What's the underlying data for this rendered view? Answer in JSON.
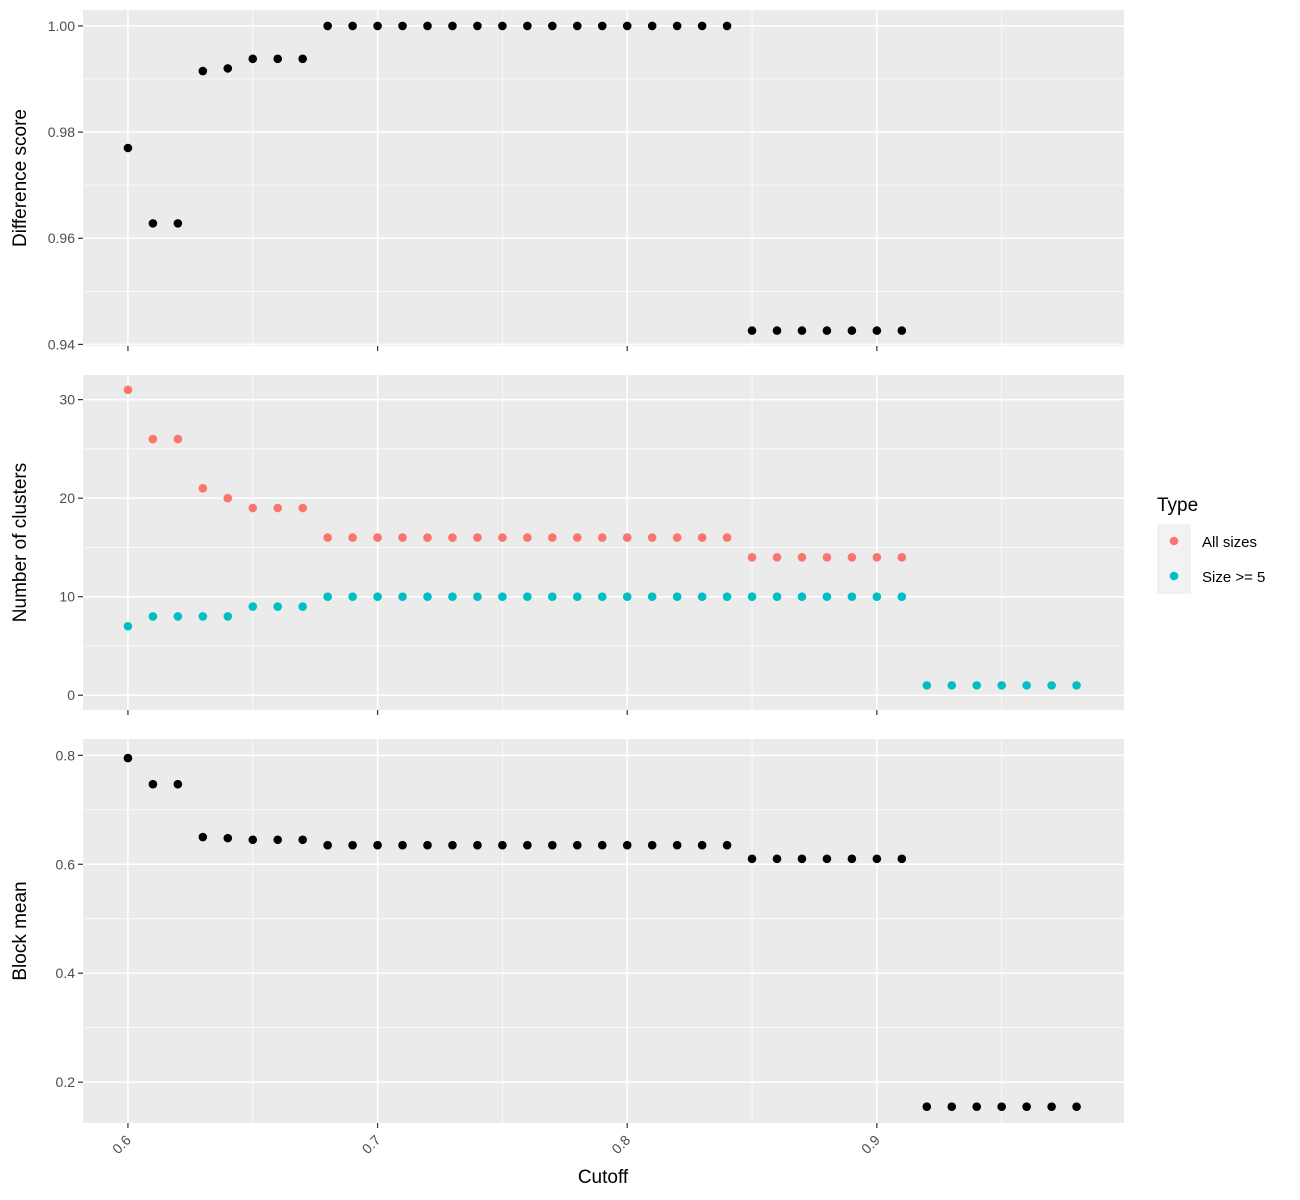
{
  "chart_data": {
    "type": "scatter",
    "layout": "three vertically stacked panels sharing the x axis",
    "xlabel": "Cutoff",
    "xlim": [
      0.582,
      0.999
    ],
    "x_ticks": [
      0.6,
      0.7,
      0.8,
      0.9
    ],
    "x_tick_labels": [
      "0.6",
      "0.7",
      "0.8",
      "0.9"
    ],
    "grid": true,
    "legend": {
      "title": "Type",
      "placement": "right",
      "entries": [
        {
          "label": "All sizes",
          "color": "#F8766D"
        },
        {
          "label": "Size >= 5",
          "color": "#00BFC4"
        }
      ]
    },
    "panels": [
      {
        "ylabel": "Difference score",
        "ylim": [
          0.9397,
          1.003
        ],
        "y_ticks": [
          0.94,
          0.96,
          0.98,
          1.0
        ],
        "y_tick_labels": [
          "0.94",
          "0.96",
          "0.98",
          "1.00"
        ],
        "series": [
          {
            "color": "#000000",
            "x": [
              0.6,
              0.61,
              0.62,
              0.63,
              0.64,
              0.65,
              0.66,
              0.67,
              0.68,
              0.69,
              0.7,
              0.71,
              0.72,
              0.73,
              0.74,
              0.75,
              0.76,
              0.77,
              0.78,
              0.79,
              0.8,
              0.81,
              0.82,
              0.83,
              0.84,
              0.85,
              0.86,
              0.87,
              0.88,
              0.89,
              0.9,
              0.91
            ],
            "y": [
              0.977,
              0.9628,
              0.9628,
              0.9915,
              0.992,
              0.9938,
              0.9938,
              0.9938,
              1.0,
              1.0,
              1.0,
              1.0,
              1.0,
              1.0,
              1.0,
              1.0,
              1.0,
              1.0,
              1.0,
              1.0,
              1.0,
              1.0,
              1.0,
              1.0,
              1.0,
              0.9426,
              0.9426,
              0.9426,
              0.9426,
              0.9426,
              0.9426,
              0.9426
            ]
          }
        ]
      },
      {
        "ylabel": "Number of clusters",
        "ylim": [
          -1.5,
          32.5
        ],
        "y_ticks": [
          0,
          10,
          20,
          30
        ],
        "y_tick_labels": [
          "0",
          "10",
          "20",
          "30"
        ],
        "series": [
          {
            "name": "All sizes",
            "color": "#F8766D",
            "x": [
              0.6,
              0.61,
              0.62,
              0.63,
              0.64,
              0.65,
              0.66,
              0.67,
              0.68,
              0.69,
              0.7,
              0.71,
              0.72,
              0.73,
              0.74,
              0.75,
              0.76,
              0.77,
              0.78,
              0.79,
              0.8,
              0.81,
              0.82,
              0.83,
              0.84,
              0.85,
              0.86,
              0.87,
              0.88,
              0.89,
              0.9,
              0.91
            ],
            "y": [
              31,
              26,
              26,
              21,
              20,
              19,
              19,
              19,
              16,
              16,
              16,
              16,
              16,
              16,
              16,
              16,
              16,
              16,
              16,
              16,
              16,
              16,
              16,
              16,
              16,
              14,
              14,
              14,
              14,
              14,
              14,
              14
            ]
          },
          {
            "name": "Size >= 5",
            "color": "#00BFC4",
            "x": [
              0.6,
              0.61,
              0.62,
              0.63,
              0.64,
              0.65,
              0.66,
              0.67,
              0.68,
              0.69,
              0.7,
              0.71,
              0.72,
              0.73,
              0.74,
              0.75,
              0.76,
              0.77,
              0.78,
              0.79,
              0.8,
              0.81,
              0.82,
              0.83,
              0.84,
              0.85,
              0.86,
              0.87,
              0.88,
              0.89,
              0.9,
              0.91,
              0.92,
              0.93,
              0.94,
              0.95,
              0.96,
              0.97,
              0.98
            ],
            "y": [
              7,
              8,
              8,
              8,
              8,
              9,
              9,
              9,
              10,
              10,
              10,
              10,
              10,
              10,
              10,
              10,
              10,
              10,
              10,
              10,
              10,
              10,
              10,
              10,
              10,
              10,
              10,
              10,
              10,
              10,
              10,
              10,
              1,
              1,
              1,
              1,
              1,
              1,
              1
            ]
          }
        ]
      },
      {
        "ylabel": "Block mean",
        "ylim": [
          0.125,
          0.83
        ],
        "y_ticks": [
          0.2,
          0.4,
          0.6,
          0.8
        ],
        "y_tick_labels": [
          "0.2",
          "0.4",
          "0.6",
          "0.8"
        ],
        "series": [
          {
            "color": "#000000",
            "x": [
              0.6,
              0.61,
              0.62,
              0.63,
              0.64,
              0.65,
              0.66,
              0.67,
              0.68,
              0.69,
              0.7,
              0.71,
              0.72,
              0.73,
              0.74,
              0.75,
              0.76,
              0.77,
              0.78,
              0.79,
              0.8,
              0.81,
              0.82,
              0.83,
              0.84,
              0.85,
              0.86,
              0.87,
              0.88,
              0.89,
              0.9,
              0.91,
              0.92,
              0.93,
              0.94,
              0.95,
              0.96,
              0.97,
              0.98
            ],
            "y": [
              0.795,
              0.747,
              0.747,
              0.65,
              0.648,
              0.645,
              0.645,
              0.645,
              0.635,
              0.635,
              0.635,
              0.635,
              0.635,
              0.635,
              0.635,
              0.635,
              0.635,
              0.635,
              0.635,
              0.635,
              0.635,
              0.635,
              0.635,
              0.635,
              0.635,
              0.61,
              0.61,
              0.61,
              0.61,
              0.61,
              0.61,
              0.61,
              0.155,
              0.155,
              0.155,
              0.155,
              0.155,
              0.155,
              0.155
            ]
          }
        ]
      }
    ]
  }
}
